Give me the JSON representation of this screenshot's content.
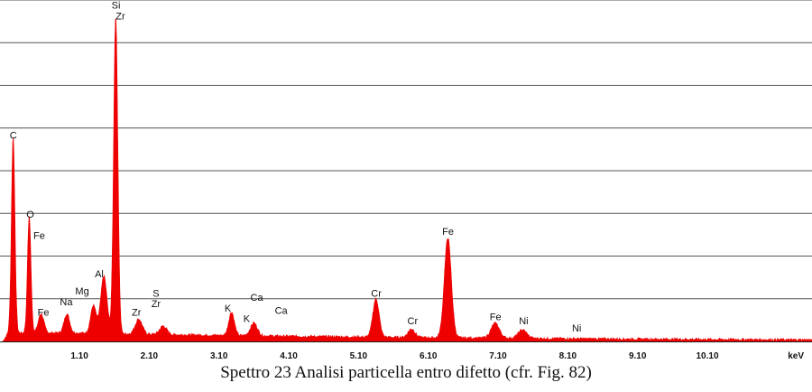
{
  "caption": "Spettro 23 Analisi particella entro difetto (cfr. Fig. 82)",
  "chart_data": {
    "type": "line",
    "title": "",
    "xlabel": "keV",
    "ylabel": "",
    "xlim": [
      0.0,
      11.6
    ],
    "ylim": [
      0,
      8
    ],
    "grid": true,
    "series_color": "#ee0000",
    "grid_color": "#555555",
    "x_ticks": [
      {
        "value": 1.1,
        "label": "1.10"
      },
      {
        "value": 2.1,
        "label": "2.10"
      },
      {
        "value": 3.1,
        "label": "3.10"
      },
      {
        "value": 4.1,
        "label": "4.10"
      },
      {
        "value": 5.1,
        "label": "5.10"
      },
      {
        "value": 6.1,
        "label": "6.10"
      },
      {
        "value": 7.1,
        "label": "7.10"
      },
      {
        "value": 8.1,
        "label": "8.10"
      },
      {
        "value": 9.1,
        "label": "9.10"
      },
      {
        "value": 10.1,
        "label": "10.10"
      }
    ],
    "background_level": 0.2,
    "peaks": [
      {
        "x": 0.15,
        "height": 4.6,
        "width": 0.025
      },
      {
        "x": 0.38,
        "height": 2.75,
        "width": 0.025
      },
      {
        "x": 0.55,
        "height": 0.45,
        "width": 0.04
      },
      {
        "x": 0.92,
        "height": 0.45,
        "width": 0.04
      },
      {
        "x": 1.3,
        "height": 0.65,
        "width": 0.04
      },
      {
        "x": 1.45,
        "height": 1.35,
        "width": 0.045
      },
      {
        "x": 1.62,
        "height": 7.45,
        "width": 0.03
      },
      {
        "x": 1.95,
        "height": 0.35,
        "width": 0.05
      },
      {
        "x": 2.3,
        "height": 0.2,
        "width": 0.05
      },
      {
        "x": 3.28,
        "height": 0.55,
        "width": 0.04
      },
      {
        "x": 3.6,
        "height": 0.3,
        "width": 0.05
      },
      {
        "x": 5.35,
        "height": 0.9,
        "width": 0.045
      },
      {
        "x": 5.86,
        "height": 0.2,
        "width": 0.05
      },
      {
        "x": 6.38,
        "height": 2.35,
        "width": 0.05
      },
      {
        "x": 7.06,
        "height": 0.35,
        "width": 0.06
      },
      {
        "x": 7.45,
        "height": 0.2,
        "width": 0.06
      }
    ],
    "annotations": [
      {
        "text": "C",
        "x": 0.1,
        "y": 4.75
      },
      {
        "text": "O",
        "x": 0.34,
        "y": 2.9
      },
      {
        "text": "Fe",
        "x": 0.44,
        "y": 2.4
      },
      {
        "text": "Fe",
        "x": 0.5,
        "y": 0.6
      },
      {
        "text": "Na",
        "x": 0.82,
        "y": 0.85
      },
      {
        "text": "Mg",
        "x": 1.04,
        "y": 1.1
      },
      {
        "text": "Al",
        "x": 1.32,
        "y": 1.5
      },
      {
        "text": "Si",
        "x": 1.56,
        "y": 7.8
      },
      {
        "text": "Zr",
        "x": 1.62,
        "y": 7.55
      },
      {
        "text": "Zr",
        "x": 1.85,
        "y": 0.6
      },
      {
        "text": "S",
        "x": 2.15,
        "y": 1.05
      },
      {
        "text": "Zr",
        "x": 2.13,
        "y": 0.8
      },
      {
        "text": "K",
        "x": 3.18,
        "y": 0.7
      },
      {
        "text": "K",
        "x": 3.45,
        "y": 0.45
      },
      {
        "text": "Ca",
        "x": 3.55,
        "y": 0.95
      },
      {
        "text": "Ca",
        "x": 3.9,
        "y": 0.65
      },
      {
        "text": "Cr",
        "x": 5.28,
        "y": 1.05
      },
      {
        "text": "Cr",
        "x": 5.8,
        "y": 0.4
      },
      {
        "text": "Fe",
        "x": 6.3,
        "y": 2.5
      },
      {
        "text": "Fe",
        "x": 6.98,
        "y": 0.5
      },
      {
        "text": "Ni",
        "x": 7.4,
        "y": 0.4
      },
      {
        "text": "Ni",
        "x": 8.16,
        "y": 0.23
      }
    ]
  }
}
